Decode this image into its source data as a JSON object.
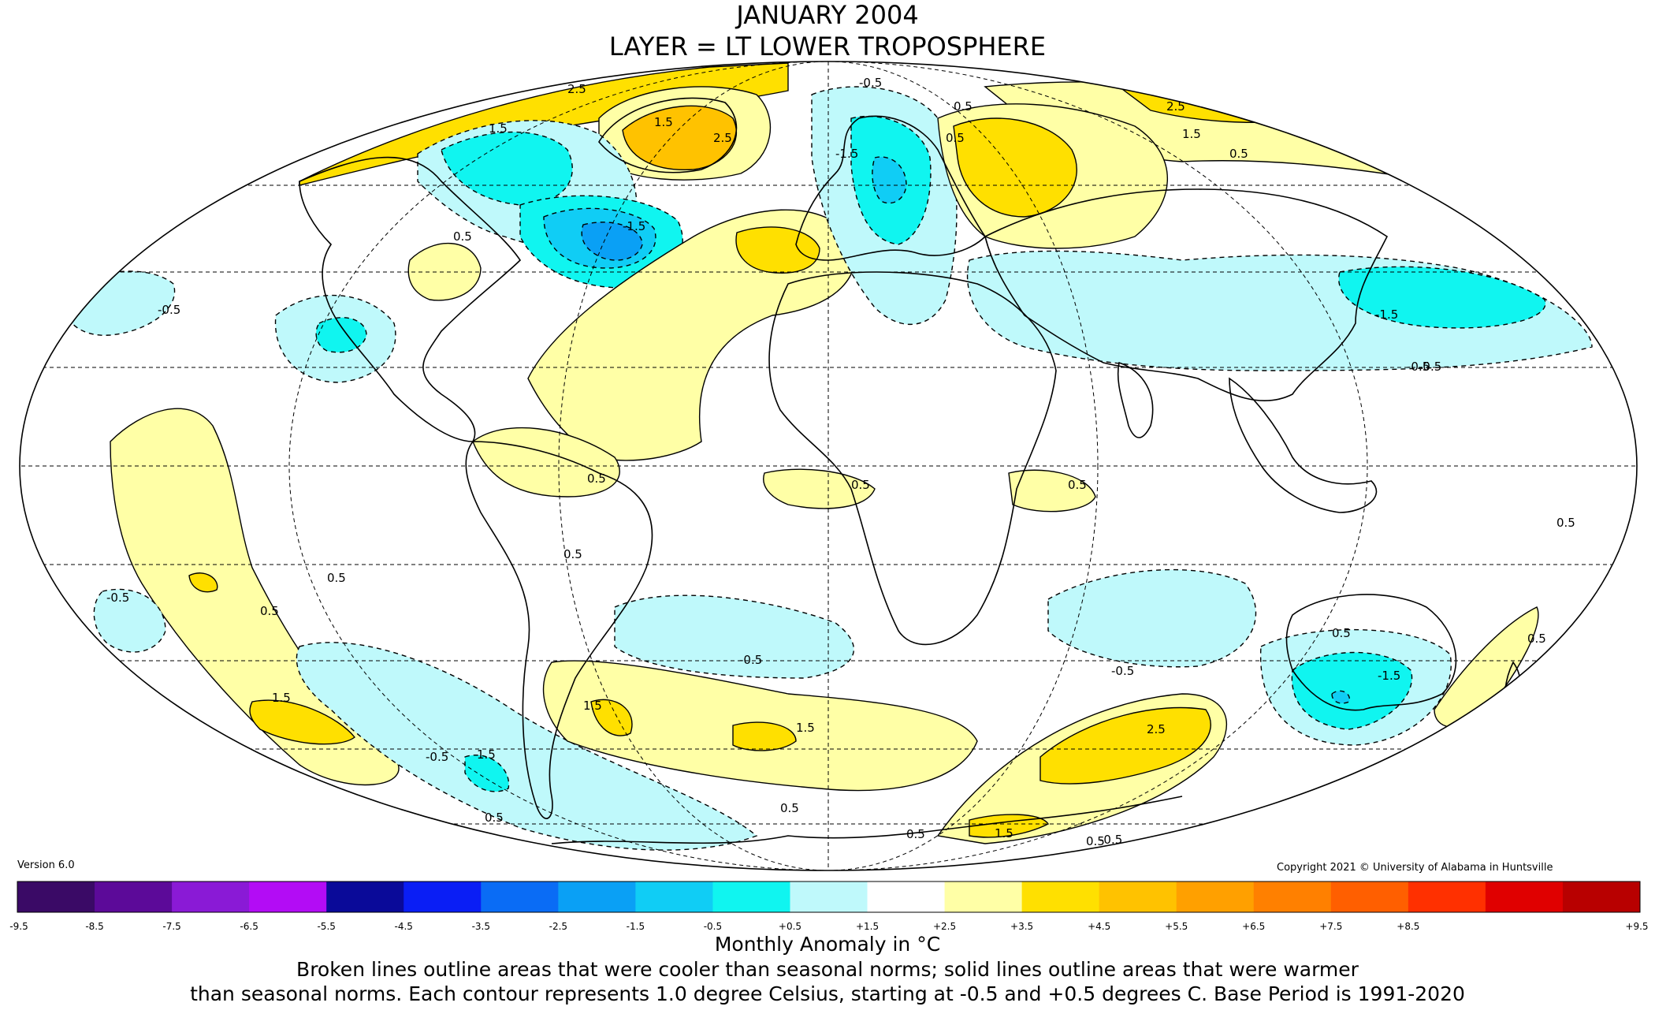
{
  "header": {
    "title": "JANUARY 2004",
    "subtitle": "LAYER = LT LOWER TROPOSPHERE"
  },
  "version": "Version 6.0",
  "copyright": "Copyright 2021 © University of Alabama in Huntsville",
  "colorbar": {
    "labels": [
      "-9.5",
      "-8.5",
      "-7.5",
      "-6.5",
      "-5.5",
      "-4.5",
      "-3.5",
      "-2.5",
      "-1.5",
      "-0.5",
      "+0.5",
      "+1.5",
      "+2.5",
      "+3.5",
      "+4.5",
      "+5.5",
      "+6.5",
      "+7.5",
      "+8.5",
      "+9.5"
    ],
    "colors": [
      "#3a0a66",
      "#5c0a99",
      "#8a1ad6",
      "#b30cf5",
      "#0a0a99",
      "#0a1ef5",
      "#0a6cf5",
      "#0aa0f5",
      "#10cdf5",
      "#10f5f0",
      "#bff9fb",
      "#ffffff",
      "#ffffa6",
      "#ffe000",
      "#ffc200",
      "#ffa000",
      "#ff8000",
      "#ff5f00",
      "#ff3000",
      "#e00000",
      "#b80000"
    ],
    "title": "Monthly Anomaly in °C"
  },
  "caption": {
    "line1": "Broken lines outline areas that were cooler than seasonal norms; solid lines outline areas that were warmer",
    "line2": "than seasonal norms. Each contour represents 1.0 degree Celsius, starting at -0.5 and +0.5 degrees C. Base Period is 1991-2020"
  },
  "contour_labels": [
    "2.5",
    "1.5",
    "0.5",
    "-0.5",
    "-1.5",
    "1.5",
    "2.5",
    "-1.5",
    "0.5",
    "2.5",
    "1.5",
    "0.5",
    "-0.5",
    "-1.5",
    "-0.5",
    "0.5",
    "0.5",
    "0.5",
    "0.5",
    "0.5",
    "0.5",
    "0.5",
    "-0.5",
    "1.5",
    "1.5",
    "-0.5",
    "-0.5",
    "2.5",
    "0.5",
    "1.5",
    "-0.5",
    "0.5",
    "0.5",
    "0.5",
    "-1.5",
    "1.5",
    "0.5",
    "1.5",
    "-0.5",
    "0.5",
    "-0.5",
    "0.5"
  ],
  "anomaly_colors": {
    "warm_1": "#ffffa6",
    "warm_2": "#ffe000",
    "warm_3": "#ffc200",
    "cool_1": "#bff9fb",
    "cool_2": "#10f5f0",
    "cool_3": "#10cdf5",
    "cool_4": "#0aa0f5"
  }
}
